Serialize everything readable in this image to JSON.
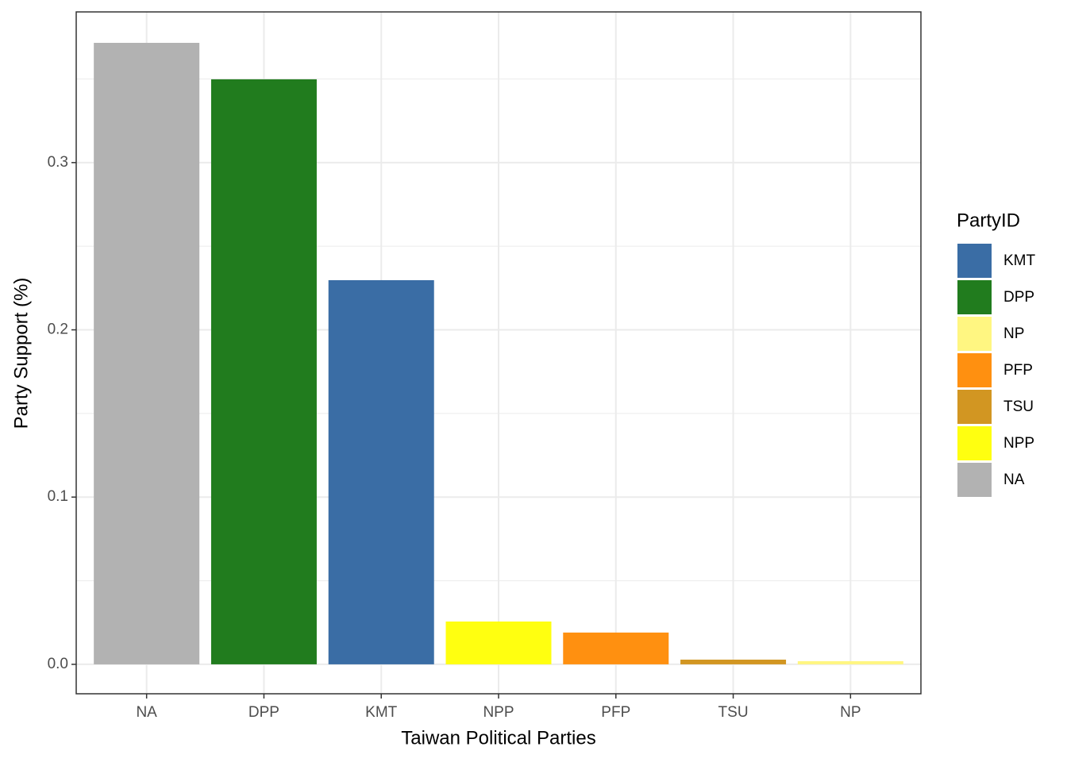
{
  "chart_data": {
    "type": "bar",
    "x_label": "Taiwan Political Parties",
    "y_label": "Party Support (%)",
    "categories": [
      "NA",
      "DPP",
      "KMT",
      "NPP",
      "PFP",
      "TSU",
      "NP"
    ],
    "values": [
      0.3716,
      0.3498,
      0.2297,
      0.0256,
      0.019,
      0.0028,
      0.0019
    ],
    "colors": [
      "#b2b2b2",
      "#217c1e",
      "#3a6da5",
      "#ffff10",
      "#ff9010",
      "#d29622",
      "#fff681"
    ],
    "ylim": [
      -0.0176,
      0.3901
    ],
    "yticks": [
      {
        "value": 0,
        "label": "0.0"
      },
      0.1,
      0.2,
      0.3
    ],
    "minor_yticks": [
      0.05,
      0.15,
      0.25,
      0.35
    ],
    "grid": true,
    "legend": {
      "title": "PartyID",
      "position": "right",
      "entries": [
        {
          "name": "KMT",
          "color": "#3a6da5"
        },
        {
          "name": "DPP",
          "color": "#217c1e"
        },
        {
          "name": "NP",
          "color": "#fff681"
        },
        {
          "name": "PFP",
          "color": "#ff9010"
        },
        {
          "name": "TSU",
          "color": "#d29622"
        },
        {
          "name": "NPP",
          "color": "#ffff10"
        },
        {
          "name": "NA",
          "color": "#b2b2b2"
        }
      ]
    }
  }
}
